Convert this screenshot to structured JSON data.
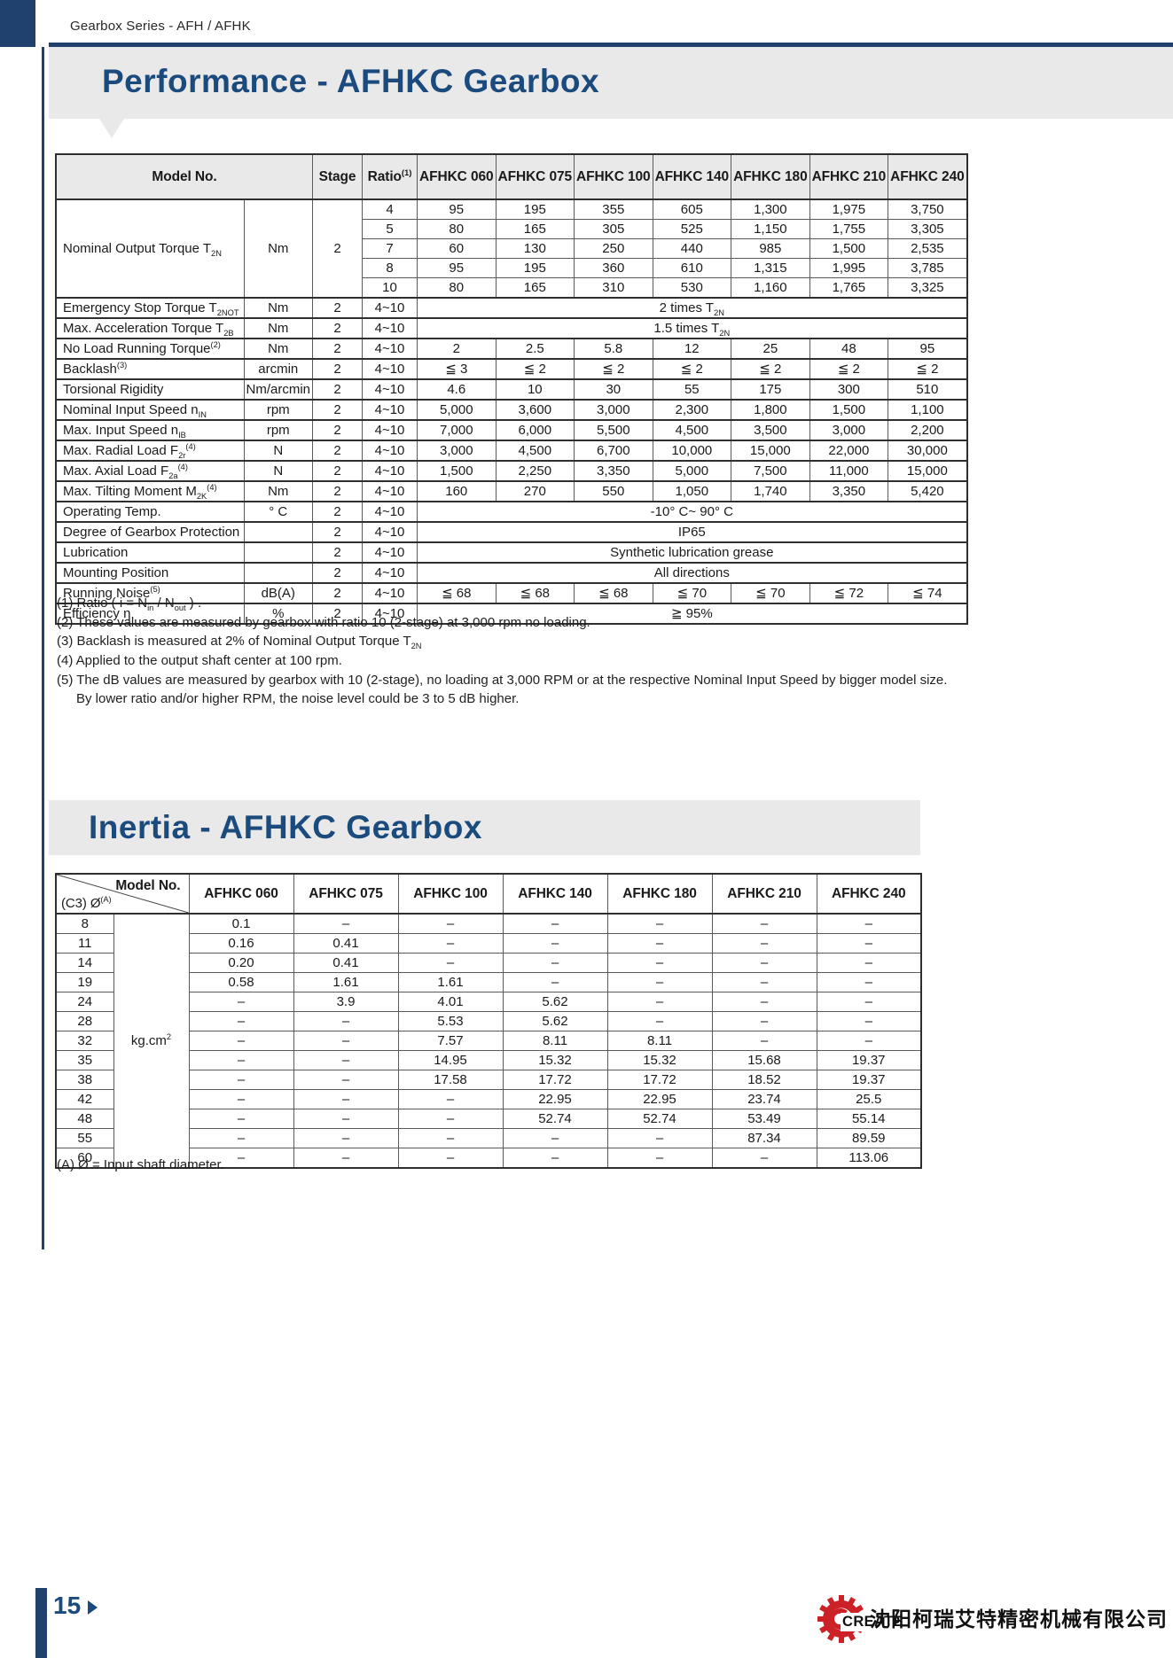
{
  "page": {
    "series_label": "Gearbox Series - AFH / AFHK",
    "page_number": "15",
    "logo_text": "CREATE",
    "company_name": "沈阳柯瑞艾特精密机械有限公司"
  },
  "colors": {
    "navy_bar": "#20406e",
    "navy_title": "#1b4a7d",
    "band_gray": "#e9e9e9",
    "logo_red": "#cc2127"
  },
  "performance": {
    "title": "Performance - AFHKC Gearbox",
    "table": {
      "header": {
        "model_no": "Model No.",
        "stage": "Stage",
        "ratio": "Ratio^{(1)}",
        "models": [
          "AFHKC 060",
          "AFHKC 075",
          "AFHKC 100",
          "AFHKC 140",
          "AFHKC 180",
          "AFHKC 210",
          "AFHKC 240"
        ]
      },
      "torque_block": {
        "label": "Nominal Output Torque T_{2N}",
        "unit": "Nm",
        "stage": "2",
        "rows": [
          {
            "ratio": "4",
            "values": [
              "95",
              "195",
              "355",
              "605",
              "1,300",
              "1,975",
              "3,750"
            ]
          },
          {
            "ratio": "5",
            "values": [
              "80",
              "165",
              "305",
              "525",
              "1,150",
              "1,755",
              "3,305"
            ]
          },
          {
            "ratio": "7",
            "values": [
              "60",
              "130",
              "250",
              "440",
              "985",
              "1,500",
              "2,535"
            ]
          },
          {
            "ratio": "8",
            "values": [
              "95",
              "195",
              "360",
              "610",
              "1,315",
              "1,995",
              "3,785"
            ]
          },
          {
            "ratio": "10",
            "values": [
              "80",
              "165",
              "310",
              "530",
              "1,160",
              "1,765",
              "3,325"
            ]
          }
        ]
      },
      "rows": [
        {
          "label": "Emergency Stop Torque T_{2NOT}",
          "unit": "Nm",
          "stage": "2",
          "ratio": "4~10",
          "span": "2 times T_{2N}"
        },
        {
          "label": "Max. Acceleration Torque T_{2B}",
          "unit": "Nm",
          "stage": "2",
          "ratio": "4~10",
          "span": "1.5 times T_{2N}"
        },
        {
          "label": "No Load Running Torque^{(2)}",
          "unit": "Nm",
          "stage": "2",
          "ratio": "4~10",
          "values": [
            "2",
            "2.5",
            "5.8",
            "12",
            "25",
            "48",
            "95"
          ]
        },
        {
          "label": "Backlash^{(3)}",
          "unit": "arcmin",
          "stage": "2",
          "ratio": "4~10",
          "values": [
            "≦ 3",
            "≦ 2",
            "≦ 2",
            "≦ 2",
            "≦ 2",
            "≦ 2",
            "≦ 2"
          ]
        },
        {
          "label": "Torsional Rigidity",
          "unit": "Nm/arcmin",
          "stage": "2",
          "ratio": "4~10",
          "values": [
            "4.6",
            "10",
            "30",
            "55",
            "175",
            "300",
            "510"
          ]
        },
        {
          "label": "Nominal Input Speed n_{IN}",
          "unit": "rpm",
          "stage": "2",
          "ratio": "4~10",
          "values": [
            "5,000",
            "3,600",
            "3,000",
            "2,300",
            "1,800",
            "1,500",
            "1,100"
          ]
        },
        {
          "label": "Max. Input Speed n_{IB}",
          "unit": "rpm",
          "stage": "2",
          "ratio": "4~10",
          "values": [
            "7,000",
            "6,000",
            "5,500",
            "4,500",
            "3,500",
            "3,000",
            "2,200"
          ]
        },
        {
          "label": "Max. Radial Load F_{2r}^{(4)}",
          "unit": "N",
          "stage": "2",
          "ratio": "4~10",
          "values": [
            "3,000",
            "4,500",
            "6,700",
            "10,000",
            "15,000",
            "22,000",
            "30,000"
          ]
        },
        {
          "label": "Max. Axial Load F_{2a}^{(4)}",
          "unit": "N",
          "stage": "2",
          "ratio": "4~10",
          "values": [
            "1,500",
            "2,250",
            "3,350",
            "5,000",
            "7,500",
            "11,000",
            "15,000"
          ]
        },
        {
          "label": "Max. Tilting Moment  M_{2K}^{(4)}",
          "unit": "Nm",
          "stage": "2",
          "ratio": "4~10",
          "values": [
            "160",
            "270",
            "550",
            "1,050",
            "1,740",
            "3,350",
            "5,420"
          ]
        },
        {
          "label": "Operating Temp.",
          "unit": "° C",
          "stage": "2",
          "ratio": "4~10",
          "span": "-10° C~ 90° C"
        },
        {
          "label": "Degree of Gearbox  Protection",
          "unit": "",
          "stage": "2",
          "ratio": "4~10",
          "span": "IP65"
        },
        {
          "label": "Lubrication",
          "unit": "",
          "stage": "2",
          "ratio": "4~10",
          "span": "Synthetic lubrication grease"
        },
        {
          "label": "Mounting Position",
          "unit": "",
          "stage": "2",
          "ratio": "4~10",
          "span": "All directions"
        },
        {
          "label": "Running Noise^{(5)}",
          "unit": "dB(A)",
          "stage": "2",
          "ratio": "4~10",
          "values": [
            "≦ 68",
            "≦ 68",
            "≦ 68",
            "≦ 70",
            "≦ 70",
            "≦ 72",
            "≦ 74"
          ]
        },
        {
          "label": "Efficiency η",
          "unit": "%",
          "stage": "2",
          "ratio": "4~10",
          "span": "≧ 95%"
        }
      ]
    },
    "footnotes": [
      {
        "text": "(1) Ratio ( i = N_{in} / N_{out} ) .",
        "indent": false
      },
      {
        "text": "(2) These values are measured by gearbox with ratio 10 (2-stage) at 3,000 rpm no loading.",
        "indent": false
      },
      {
        "text": "(3) Backlash is measured at 2% of Nominal Output Torque T_{2N}",
        "indent": false
      },
      {
        "text": "(4) Applied to the output shaft center at 100 rpm.",
        "indent": false
      },
      {
        "text": "(5) The dB values are measured by gearbox with 10 (2-stage), no loading at 3,000 RPM or at the respective Nominal Input Speed by bigger model size.",
        "indent": false
      },
      {
        "text": "By lower ratio and/or higher RPM, the noise level could be 3 to 5 dB higher.",
        "indent": true
      }
    ]
  },
  "inertia": {
    "title": "Inertia - AFHKC Gearbox",
    "table": {
      "corner_top": "Model No.",
      "corner_bottom": "(C3) Ø^{(A)}",
      "unit": "kg.cm^{2}",
      "models": [
        "AFHKC 060",
        "AFHKC 075",
        "AFHKC 100",
        "AFHKC 140",
        "AFHKC 180",
        "AFHKC 210",
        "AFHKC 240"
      ],
      "rows": [
        {
          "diameter": "8",
          "values": [
            "0.1",
            "–",
            "–",
            "–",
            "–",
            "–",
            "–"
          ]
        },
        {
          "diameter": "11",
          "values": [
            "0.16",
            "0.41",
            "–",
            "–",
            "–",
            "–",
            "–"
          ]
        },
        {
          "diameter": "14",
          "values": [
            "0.20",
            "0.41",
            "–",
            "–",
            "–",
            "–",
            "–"
          ]
        },
        {
          "diameter": "19",
          "values": [
            "0.58",
            "1.61",
            "1.61",
            "–",
            "–",
            "–",
            "–"
          ]
        },
        {
          "diameter": "24",
          "values": [
            "–",
            "3.9",
            "4.01",
            "5.62",
            "–",
            "–",
            "–"
          ]
        },
        {
          "diameter": "28",
          "values": [
            "–",
            "–",
            "5.53",
            "5.62",
            "–",
            "–",
            "–"
          ]
        },
        {
          "diameter": "32",
          "values": [
            "–",
            "–",
            "7.57",
            "8.11",
            "8.11",
            "–",
            "–"
          ]
        },
        {
          "diameter": "35",
          "values": [
            "–",
            "–",
            "14.95",
            "15.32",
            "15.32",
            "15.68",
            "19.37"
          ]
        },
        {
          "diameter": "38",
          "values": [
            "–",
            "–",
            "17.58",
            "17.72",
            "17.72",
            "18.52",
            "19.37"
          ]
        },
        {
          "diameter": "42",
          "values": [
            "–",
            "–",
            "–",
            "22.95",
            "22.95",
            "23.74",
            "25.5"
          ]
        },
        {
          "diameter": "48",
          "values": [
            "–",
            "–",
            "–",
            "52.74",
            "52.74",
            "53.49",
            "55.14"
          ]
        },
        {
          "diameter": "55",
          "values": [
            "–",
            "–",
            "–",
            "–",
            "–",
            "87.34",
            "89.59"
          ]
        },
        {
          "diameter": "60",
          "values": [
            "–",
            "–",
            "–",
            "–",
            "–",
            "–",
            "113.06"
          ]
        }
      ]
    },
    "footnote": "(A)  Ø = Input shaft diameter."
  }
}
